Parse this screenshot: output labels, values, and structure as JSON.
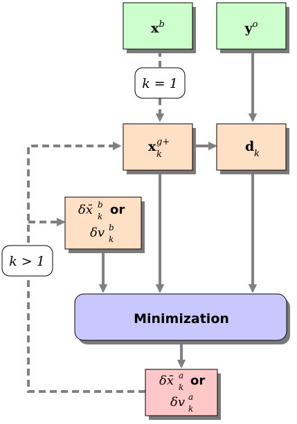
{
  "colors": {
    "green": "#ccffcc",
    "peach": "#ffe0c4",
    "lavender": "#c8c8ff",
    "pink": "#ffc8c8",
    "arrow": "#808080",
    "stroke": "#000000",
    "shadow": "#7a7a7a"
  },
  "nodes": {
    "xb": {
      "base": "x",
      "sup": "b"
    },
    "yo": {
      "base": "y",
      "sup": "o"
    },
    "xg": {
      "base": "x",
      "sup": "g+",
      "sub": "k"
    },
    "dk": {
      "base": "d",
      "sub": "k"
    },
    "incr": {
      "line1_base": "δx̄",
      "line1_sup": "b",
      "line1_sub": "k",
      "or_label": "or",
      "line2_base": "δv",
      "line2_sup": "b",
      "line2_sub": "k"
    },
    "minimization": {
      "label": "Minimization"
    },
    "analysis": {
      "line1_base": "δx̄",
      "line1_sup": "a",
      "line1_sub": "k",
      "or_label": "or",
      "line2_base": "δv",
      "line2_sup": "a",
      "line2_sub": "k"
    }
  },
  "conditions": {
    "first": "k = 1",
    "loop": "k > 1"
  }
}
